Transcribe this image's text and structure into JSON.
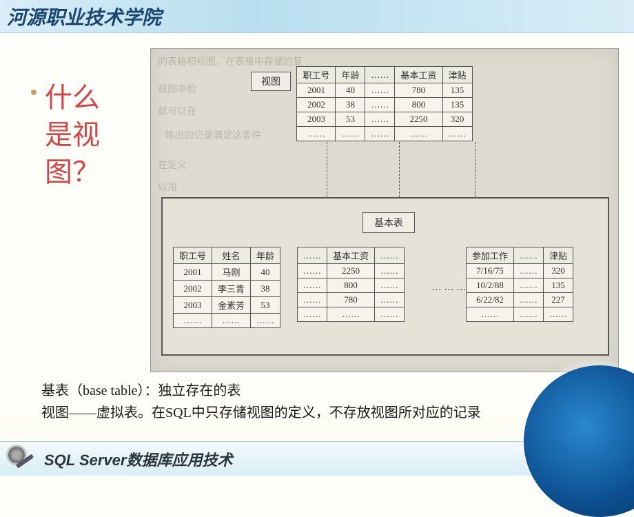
{
  "header": {
    "title": "河源职业技术学院"
  },
  "side_question": "什么是视图？",
  "diagram": {
    "view_label": "视图",
    "base_label": "基本表",
    "view_table": {
      "headers": [
        "职工号",
        "年龄",
        "……",
        "基本工资",
        "津贴"
      ],
      "rows": [
        [
          "2001",
          "40",
          "……",
          "780",
          "135"
        ],
        [
          "2002",
          "38",
          "……",
          "800",
          "135"
        ],
        [
          "2003",
          "53",
          "……",
          "2250",
          "320"
        ],
        [
          "……",
          "……",
          "……",
          "……",
          "……"
        ]
      ],
      "header_bg": "#ecebe0",
      "cell_bg": "#f5f3ea",
      "border_color": "#555555"
    },
    "base_table_1": {
      "headers": [
        "职工号",
        "姓名",
        "年龄"
      ],
      "rows": [
        [
          "2001",
          "马刚",
          "40"
        ],
        [
          "2002",
          "李三青",
          "38"
        ],
        [
          "2003",
          "金素芳",
          "53"
        ],
        [
          "……",
          "……",
          "……"
        ]
      ]
    },
    "base_table_2": {
      "headers": [
        "……",
        "基本工资",
        "……"
      ],
      "rows": [
        [
          "……",
          "2250",
          "……"
        ],
        [
          "……",
          "800",
          "……"
        ],
        [
          "……",
          "780",
          "……"
        ],
        [
          "……",
          "……",
          "……"
        ]
      ]
    },
    "base_table_3": {
      "headers": [
        "参加工作",
        "……",
        "津贴"
      ],
      "rows": [
        [
          "7/16/75",
          "……",
          "320"
        ],
        [
          "10/2/88",
          "……",
          "135"
        ],
        [
          "6/22/82",
          "……",
          "227"
        ],
        [
          "……",
          "……",
          "……"
        ]
      ]
    },
    "dots": "………",
    "ghost_texts": {
      "g1": "的表格和视图，在表格中存储的复",
      "g2": "视图中检",
      "g3": "就可以在",
      "g4": "输出的记录满足这条件",
      "g5": "在定义",
      "g6": "以用"
    }
  },
  "description": {
    "line1": "基表（base table）：独立存在的表",
    "line2": "视图——虚拟表。在SQL中只存储视图的定义，不存放视图所对应的记录"
  },
  "footer": {
    "title": "SQL Server数据库应用技术"
  },
  "colors": {
    "header_bg": "#d8edf7",
    "side_text": "#d64545",
    "diagram_bg": "#dddad0",
    "base_box_bg": "#e5e2d7",
    "corner_sphere": "#2a88d0"
  }
}
